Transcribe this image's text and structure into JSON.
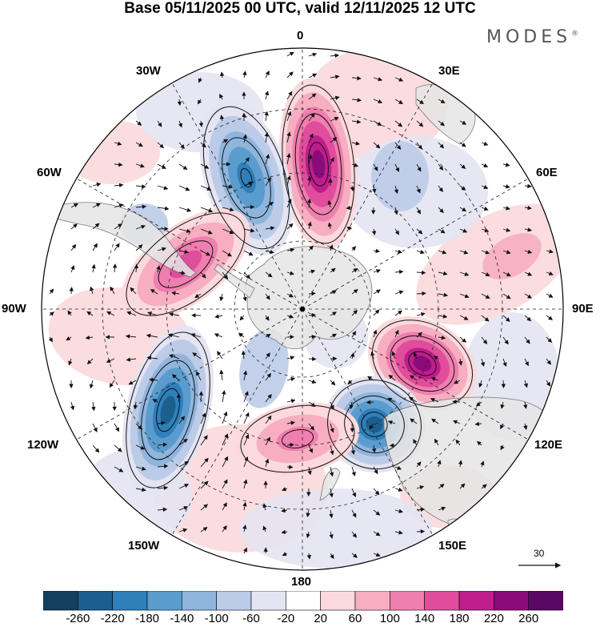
{
  "title": "Base 05/11/2025 00 UTC, valid 12/11/2025 12 UTC",
  "logo": {
    "text": "MODES",
    "mark": "®"
  },
  "map": {
    "projection": "south-polar-stereographic",
    "longitude_labels": {
      "top": "0",
      "top_right": "30E",
      "right_upper": "60E",
      "right": "90E",
      "right_lower": "120E",
      "bottom_right": "150E",
      "bottom": "180",
      "bottom_left": "150W",
      "left_lower": "120W",
      "left": "90W",
      "left_upper": "60W",
      "top_left": "30W"
    },
    "anomaly_centers": [
      {
        "name": "south-atlantic-high",
        "sign": "positive",
        "peak": 240
      },
      {
        "name": "southwest-atlantic-low",
        "sign": "negative",
        "peak": -200
      },
      {
        "name": "southern-indian-high",
        "sign": "positive",
        "peak": 240
      },
      {
        "name": "south-of-australia-low",
        "sign": "negative",
        "peak": -220
      },
      {
        "name": "southeast-pacific-low",
        "sign": "negative",
        "peak": -220
      },
      {
        "name": "ross-sea-high",
        "sign": "positive",
        "peak": 120
      },
      {
        "name": "drake-passage-high",
        "sign": "positive",
        "peak": 140
      }
    ],
    "vector_reference": {
      "label": "30"
    }
  },
  "colorbar": {
    "ticks": [
      "-260",
      "-220",
      "-180",
      "-140",
      "-100",
      "-60",
      "-20",
      "20",
      "60",
      "100",
      "140",
      "180",
      "220",
      "260"
    ],
    "colors": [
      "#143f5e",
      "#1b5f8f",
      "#2f7fba",
      "#5a9ccd",
      "#8fb5dd",
      "#bccbe8",
      "#e4e4f2",
      "#ffffff",
      "#fbd9dc",
      "#f6aec0",
      "#ef7fae",
      "#e04d9c",
      "#bf1d8c",
      "#8c0b7a",
      "#5a0866"
    ]
  },
  "colors": {
    "land": "#e6e6e6",
    "land_edge": "#666666",
    "grid": "#222222"
  }
}
